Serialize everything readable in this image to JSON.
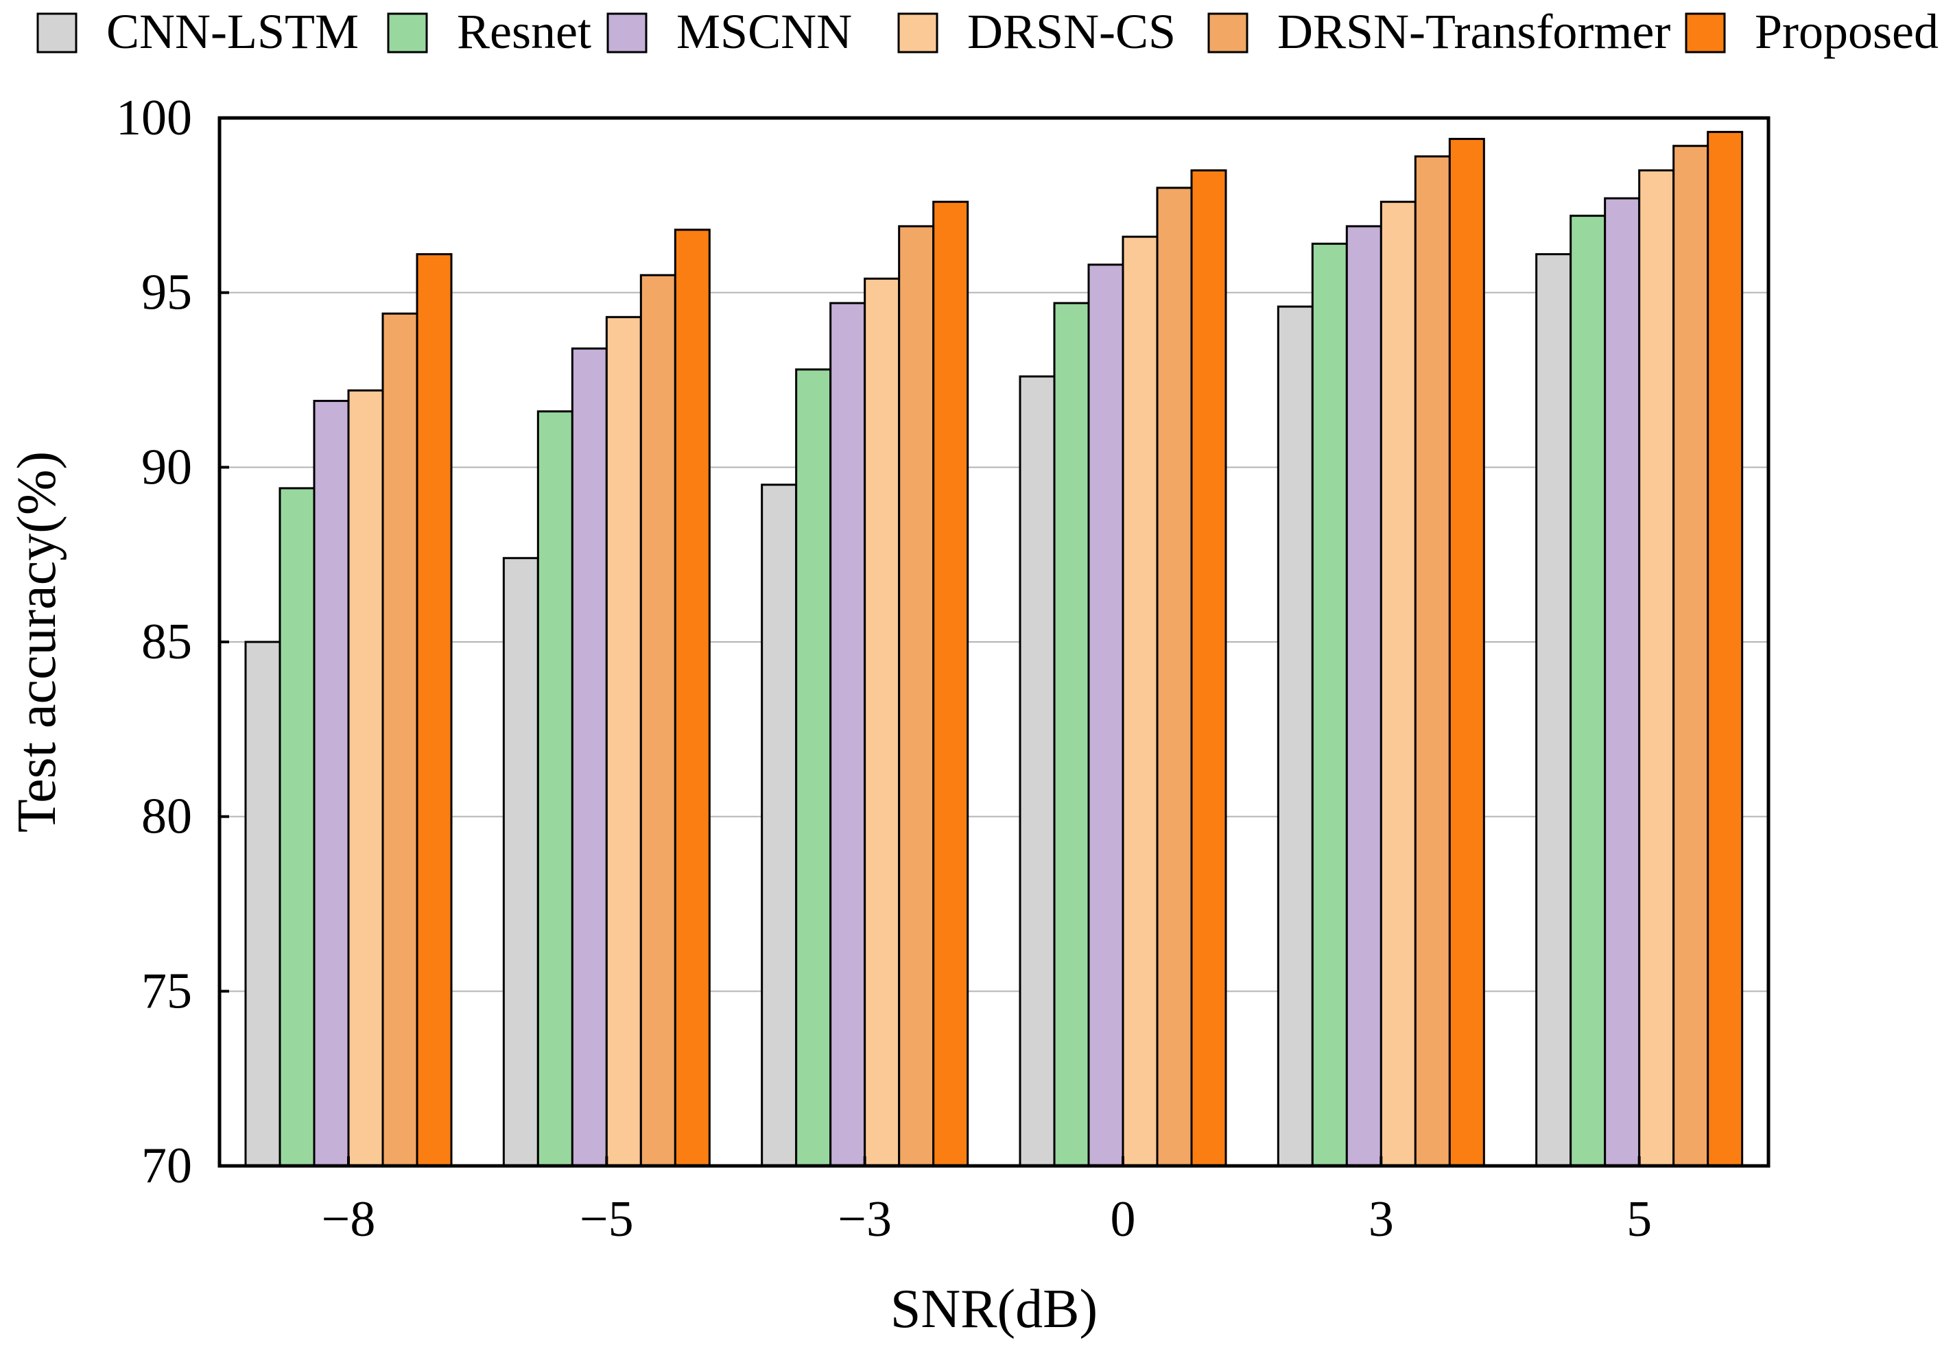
{
  "chart_data": {
    "type": "bar",
    "title": "",
    "xlabel": "SNR(dB)",
    "ylabel": "Test accuracy(%)",
    "categories": [
      "−8",
      "−5",
      "−3",
      "0",
      "3",
      "5"
    ],
    "ylim": [
      70,
      100
    ],
    "yticks": [
      "70",
      "75",
      "80",
      "85",
      "90",
      "95",
      "100"
    ],
    "grid": "horizontal",
    "legend_position": "top",
    "series": [
      {
        "name": "CNN-LSTM",
        "color": "#d3d3d3",
        "values": [
          85.0,
          87.4,
          89.5,
          92.6,
          94.6,
          96.1
        ]
      },
      {
        "name": "Resnet",
        "color": "#98d89e",
        "values": [
          89.4,
          91.6,
          92.8,
          94.7,
          96.4,
          97.2
        ]
      },
      {
        "name": "MSCNN",
        "color": "#c5b0d8",
        "values": [
          91.9,
          93.4,
          94.7,
          95.8,
          96.9,
          97.7
        ]
      },
      {
        "name": "DRSN-CS",
        "color": "#fbc995",
        "values": [
          92.2,
          94.3,
          95.4,
          96.6,
          97.6,
          98.5
        ]
      },
      {
        "name": "DRSN-Transformer",
        "color": "#f2a765",
        "values": [
          94.4,
          95.5,
          96.9,
          98.0,
          98.9,
          99.2
        ]
      },
      {
        "name": "Proposed",
        "color": "#fb7e12",
        "values": [
          96.1,
          96.8,
          97.6,
          98.5,
          99.4,
          99.6
        ]
      }
    ]
  }
}
